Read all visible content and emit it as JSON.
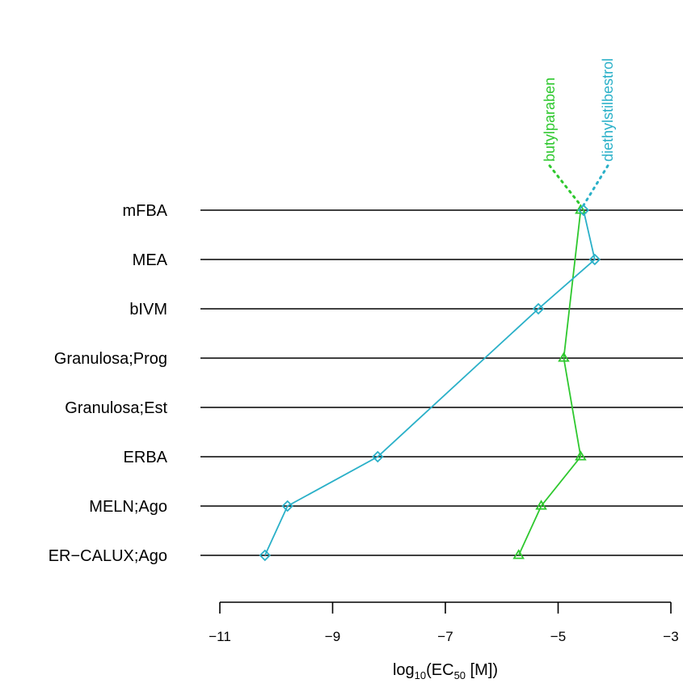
{
  "chart_data": {
    "type": "line",
    "orientation": "horizontal",
    "categories": [
      "mFBA",
      "MEA",
      "bIVM",
      "Granulosa;Prog",
      "Granulosa;Est",
      "ERBA",
      "MELN;Ago",
      "ER−CALUX;Ago"
    ],
    "xlabel": {
      "prefix": "log",
      "sub": "10",
      "mid": "(EC",
      "sub2": "50",
      "suffix": " [M])"
    },
    "xlim": [
      -11,
      -3
    ],
    "xticks": [
      -11,
      -9,
      -7,
      -5,
      -3
    ],
    "xtick_labels": [
      "−11",
      "−9",
      "−7",
      "−5",
      "−3"
    ],
    "grid": "horizontal row lines",
    "legend": "series names printed vertically at top, joined to mFBA points by dotted leaders",
    "series": [
      {
        "name": "butylparaben",
        "color": "#2ec82e",
        "marker": "triangle",
        "values": [
          -4.6,
          null,
          null,
          -4.9,
          null,
          -4.6,
          -5.3,
          -5.7
        ]
      },
      {
        "name": "diethylstilbestrol",
        "color": "#2ab0c8",
        "marker": "diamond",
        "values": [
          -4.55,
          -4.35,
          -5.35,
          null,
          null,
          -8.2,
          -9.8,
          -10.2
        ]
      }
    ]
  }
}
